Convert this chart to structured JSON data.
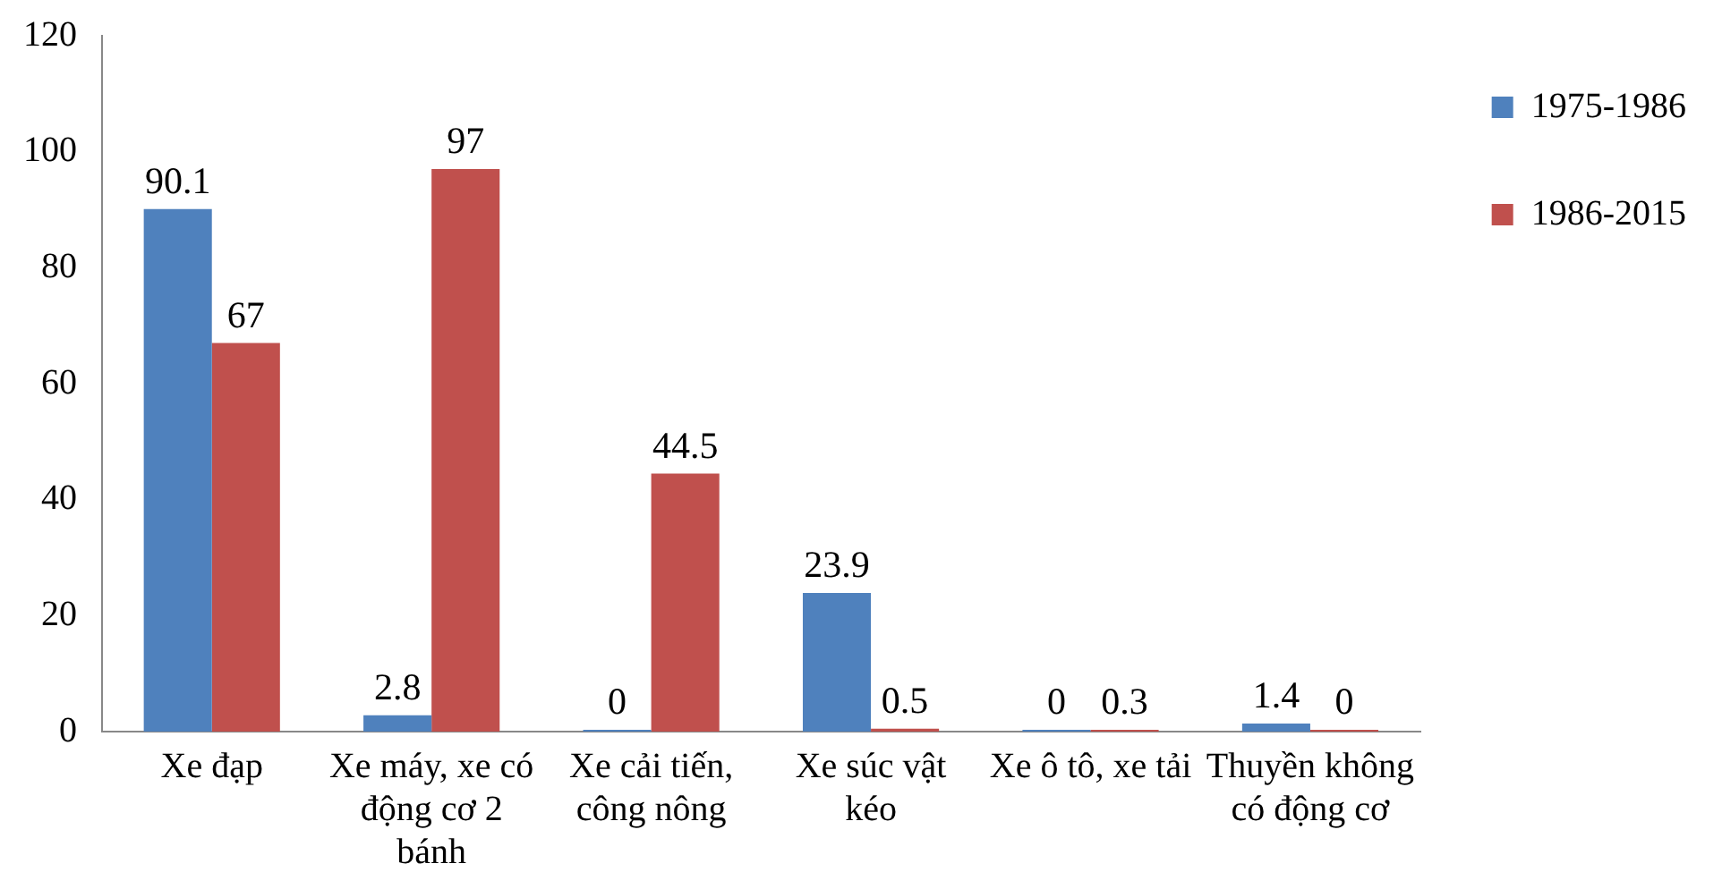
{
  "chart_data": {
    "type": "bar",
    "categories": [
      "Xe đạp",
      "Xe máy, xe có động cơ 2 bánh",
      "Xe cải tiến, công nông",
      "Xe súc vật kéo",
      "Xe ô tô, xe tải",
      "Thuyền không có động cơ"
    ],
    "series": [
      {
        "name": "1975-1986",
        "color": "#4f81bd",
        "values": [
          90.1,
          2.8,
          0,
          23.9,
          0,
          1.4
        ]
      },
      {
        "name": "1986-2015",
        "color": "#c0504d",
        "values": [
          67,
          97,
          44.5,
          0.5,
          0.3,
          0
        ]
      }
    ],
    "ylim": [
      0,
      120
    ],
    "yticks": [
      0,
      20,
      40,
      60,
      80,
      100,
      120
    ],
    "grid": false,
    "legend": "right",
    "data_labels": true
  }
}
